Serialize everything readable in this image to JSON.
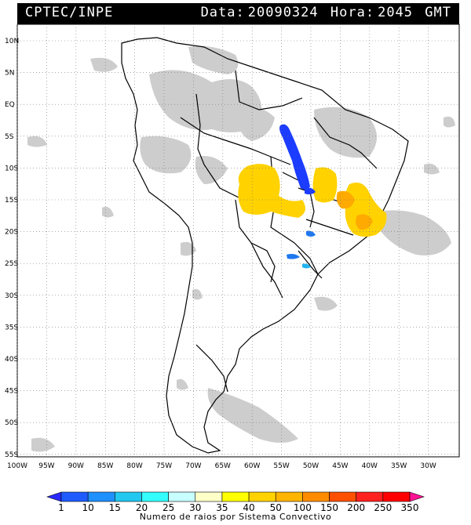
{
  "header": {
    "source": "CPTEC/INPE",
    "date_label": "Data:",
    "date_value": "20090324",
    "time_label": "Hora:",
    "time_value": "2045",
    "timezone": "GMT"
  },
  "map": {
    "lat_labels": [
      "10N",
      "5N",
      "EQ",
      "5S",
      "10S",
      "15S",
      "20S",
      "25S",
      "30S",
      "35S",
      "40S",
      "45S",
      "50S",
      "55S"
    ],
    "lon_labels": [
      "100W",
      "95W",
      "90W",
      "85W",
      "80W",
      "75W",
      "70W",
      "65W",
      "60W",
      "55W",
      "50W",
      "45W",
      "40W",
      "35W",
      "30W"
    ],
    "colors": {
      "cloud": "#c8c8c8",
      "border": "#000000",
      "low_blue": "#1c3cff",
      "mid_blue": "#1e78f0",
      "light_blue": "#22b4f0",
      "yellow": "#ffd200",
      "orange": "#ffaa00"
    }
  },
  "colorbar": {
    "ticks": [
      "1",
      "10",
      "15",
      "20",
      "25",
      "30",
      "35",
      "40",
      "50",
      "100",
      "150",
      "200",
      "250",
      "350"
    ],
    "colors": [
      "#2a2aff",
      "#1e5bff",
      "#1e90ff",
      "#22c8f0",
      "#33ffff",
      "#c8ffff",
      "#ffffc8",
      "#ffff00",
      "#ffd200",
      "#ffb400",
      "#ff8c00",
      "#ff5000",
      "#ff2020",
      "#ff0000",
      "#ff1493"
    ],
    "caption": "Numero de raios por Sistema Convectivo"
  }
}
